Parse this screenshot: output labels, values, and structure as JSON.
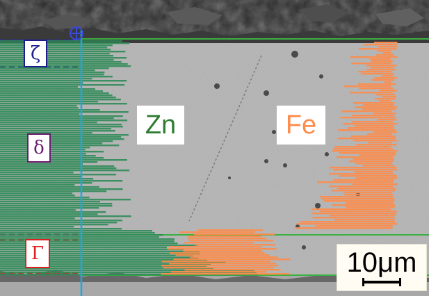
{
  "phases": {
    "zeta": "ζ",
    "delta": "δ",
    "gamma": "Γ"
  },
  "elements": {
    "zn": "Zn",
    "fe": "Fe"
  },
  "scale_bar": {
    "label": "10μm"
  },
  "colors": {
    "zn_profile": "#2e8b57",
    "fe_profile": "#ff8c4a",
    "line_scan": "#1fa7e0",
    "boundary": "#3cb043",
    "zeta_border": "#1c1c8c",
    "delta_border": "#6a1b6f",
    "gamma_border": "#e02020",
    "zeta_dash": "#2a2aa8",
    "delta_dash": "#8a1a6a",
    "gamma_dash": "#e02020",
    "matrix": "#b0b0b0",
    "top_coating": "#2a2a2a"
  },
  "icons": {
    "line_origin": "crosshair-circle-icon"
  }
}
